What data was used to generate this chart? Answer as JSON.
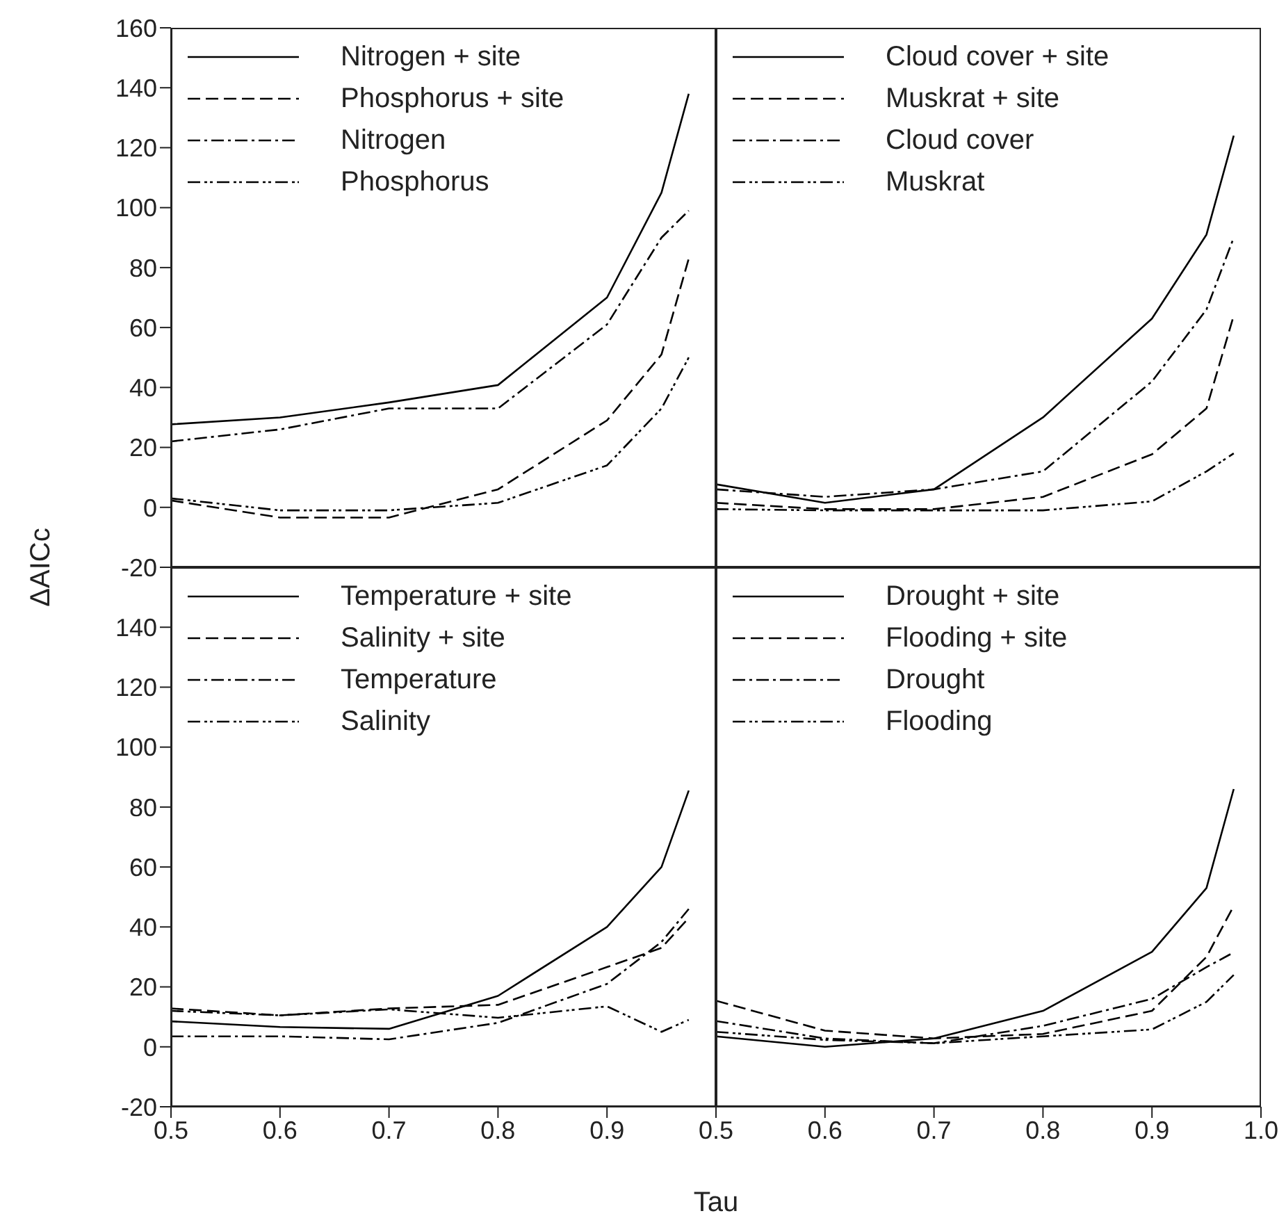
{
  "chart_data": [
    {
      "type": "line",
      "ylabel": "ΔAICc",
      "x": [
        0.5,
        0.6,
        0.7,
        0.8,
        0.9,
        0.95,
        0.975
      ],
      "xlim": [
        0.5,
        1.0
      ],
      "ylim": [
        -20,
        160
      ],
      "yticks": [
        -20,
        0,
        20,
        40,
        60,
        80,
        100,
        120,
        140,
        160
      ],
      "tick_labels": "y",
      "legend": "top left",
      "grid": false,
      "marker": "none",
      "series": [
        {
          "name": "Nitrogen + site",
          "color": "#000000",
          "line_style": "solid",
          "values": [
            27.7,
            30,
            35,
            40.8,
            70,
            105,
            138
          ]
        },
        {
          "name": "Phosphorus + site",
          "color": "#000000",
          "line_style": "dashed",
          "values": [
            2.3,
            -3.4,
            -3.4,
            6,
            29,
            51,
            83
          ]
        },
        {
          "name": "Nitrogen",
          "color": "#000000",
          "line_style": "dashdot",
          "values": [
            22,
            26,
            33,
            33,
            61,
            90,
            99
          ]
        },
        {
          "name": "Phosphorus",
          "color": "#000000",
          "line_style": "dashdotdot",
          "values": [
            3,
            -1,
            -1,
            1.5,
            14,
            33,
            50
          ]
        }
      ]
    },
    {
      "type": "line",
      "x": [
        0.5,
        0.6,
        0.7,
        0.8,
        0.9,
        0.95,
        0.975
      ],
      "xlim": [
        0.5,
        1.0
      ],
      "ylim": [
        -20,
        160
      ],
      "tick_labels": false,
      "legend": "top left",
      "grid": false,
      "marker": "none",
      "series": [
        {
          "name": "Cloud cover + site",
          "color": "#000000",
          "line_style": "solid",
          "values": [
            7.7,
            1.5,
            6,
            30,
            63,
            91,
            124
          ]
        },
        {
          "name": "Muskrat + site",
          "color": "#000000",
          "line_style": "dashed",
          "values": [
            1.5,
            -0.6,
            -0.6,
            3.5,
            17.7,
            33,
            64
          ]
        },
        {
          "name": "Cloud cover",
          "color": "#000000",
          "line_style": "dashdot",
          "values": [
            6,
            3.5,
            6,
            12,
            42,
            66,
            90
          ]
        },
        {
          "name": "Muskrat",
          "color": "#000000",
          "line_style": "dashdotdot",
          "values": [
            -0.6,
            -1,
            -1,
            -1,
            2,
            12,
            18
          ]
        }
      ]
    },
    {
      "type": "line",
      "xlabel": "Tau",
      "x": [
        0.5,
        0.6,
        0.7,
        0.8,
        0.9,
        0.95,
        0.975
      ],
      "xlim": [
        0.5,
        1.0
      ],
      "xticks": [
        0.5,
        0.6,
        0.7,
        0.8,
        0.9
      ],
      "ylim": [
        -20,
        160
      ],
      "yticks": [
        -20,
        0,
        20,
        40,
        60,
        80,
        100,
        120,
        140
      ],
      "legend": "top left",
      "grid": false,
      "marker": "none",
      "series": [
        {
          "name": "Temperature + site",
          "color": "#000000",
          "line_style": "solid",
          "values": [
            8.5,
            6.6,
            6,
            17,
            40,
            60,
            85.5
          ]
        },
        {
          "name": "Salinity + site",
          "color": "#000000",
          "line_style": "dashed",
          "values": [
            12.8,
            10.5,
            12.8,
            14,
            26.6,
            33,
            43
          ]
        },
        {
          "name": "Temperature",
          "color": "#000000",
          "line_style": "dashdot",
          "values": [
            3.5,
            3.5,
            2.5,
            8,
            21,
            35,
            46
          ]
        },
        {
          "name": "Salinity",
          "color": "#000000",
          "line_style": "dashdotdot",
          "values": [
            12,
            10.5,
            12.5,
            9.7,
            13.5,
            5,
            9
          ]
        }
      ]
    },
    {
      "type": "line",
      "x": [
        0.5,
        0.6,
        0.7,
        0.8,
        0.9,
        0.95,
        0.975
      ],
      "xlim": [
        0.5,
        1.0
      ],
      "xticks": [
        0.5,
        0.6,
        0.7,
        0.8,
        0.9,
        {
          "value": 1.0,
          "label": "1.0"
        }
      ],
      "ylim": [
        -20,
        160
      ],
      "tick_labels": "x",
      "legend": "top left",
      "grid": false,
      "marker": "none",
      "series": [
        {
          "name": "Drought + site",
          "color": "#000000",
          "line_style": "solid",
          "values": [
            3.5,
            0,
            2.8,
            12,
            31.7,
            53,
            86
          ]
        },
        {
          "name": "Flooding + site",
          "color": "#000000",
          "line_style": "dashed",
          "values": [
            15.4,
            5.4,
            2.8,
            4.3,
            12,
            30,
            47
          ]
        },
        {
          "name": "Drought",
          "color": "#000000",
          "line_style": "dashdot",
          "values": [
            8.6,
            2.8,
            1.2,
            7,
            16,
            26.6,
            31.5
          ]
        },
        {
          "name": "Flooding",
          "color": "#000000",
          "line_style": "dashdotdot",
          "values": [
            5,
            2.3,
            1.2,
            3.5,
            5.8,
            15,
            24
          ]
        }
      ]
    }
  ]
}
